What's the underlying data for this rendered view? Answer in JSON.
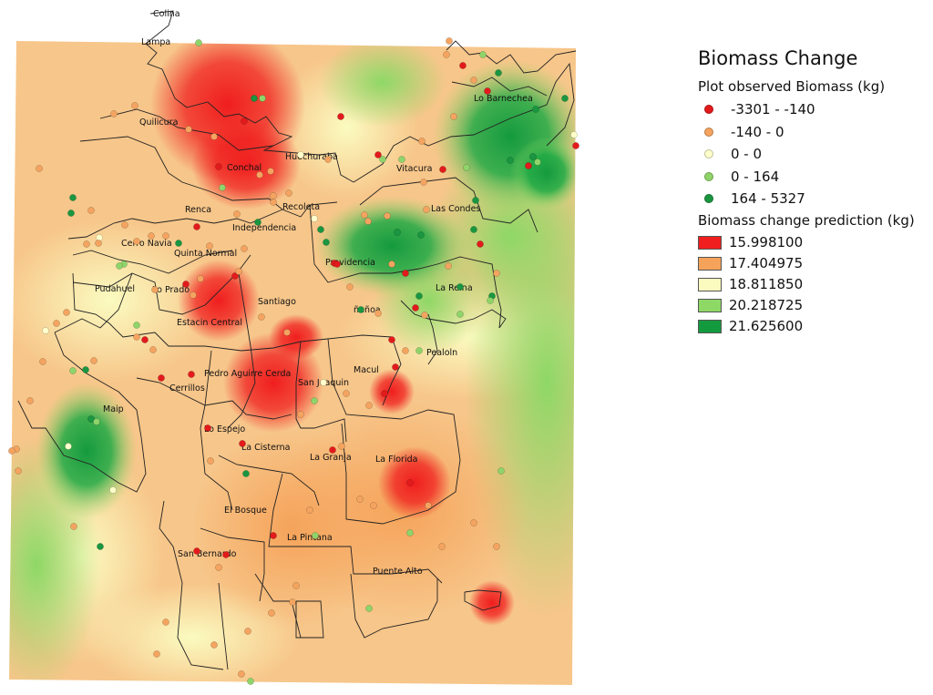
{
  "legend": {
    "title": "Biomass Change",
    "observed_title": "Plot observed Biomass (kg)",
    "observed_classes": [
      {
        "label": "-3301 - -140",
        "color": "#e31a1c"
      },
      {
        "label": "-140 - 0",
        "color": "#f4a460"
      },
      {
        "label": "0 - 0",
        "color": "#ffffcc"
      },
      {
        "label": "0 - 164",
        "color": "#8fd46a"
      },
      {
        "label": "164 - 5327",
        "color": "#1a9641"
      }
    ],
    "prediction_title": "Biomass change prediction (kg)",
    "prediction_classes": [
      {
        "label": "15.998100",
        "color": "#f01e1e"
      },
      {
        "label": "17.404975",
        "color": "#f5a35a"
      },
      {
        "label": "18.811850",
        "color": "#fbfbc0"
      },
      {
        "label": "20.218725",
        "color": "#8ed866"
      },
      {
        "label": "21.625600",
        "color": "#149a3e"
      }
    ]
  },
  "communes": [
    "Colina",
    "Lampa",
    "Quilicura",
    "Lo Barnechea",
    "Huechuraba",
    "Conchal",
    "Vitacura",
    "Recoleta",
    "Las Condes",
    "Renca",
    "Independencia",
    "Cerro Navia",
    "Quinta Normal",
    "Providencia",
    "Pudahuel",
    "Lo Prado",
    "La Reina",
    "Santiago",
    "ñuñoa",
    "Estacin Central",
    "Pealoln",
    "Macul",
    "Pedro Aguirre Cerda",
    "Cerrillos",
    "San Joaquin",
    "Maip",
    "Lo Espejo",
    "La Cisterna",
    "La Granja",
    "La Florida",
    "El Bosque",
    "La Pintana",
    "San Bernardo",
    "Puente Alto"
  ]
}
